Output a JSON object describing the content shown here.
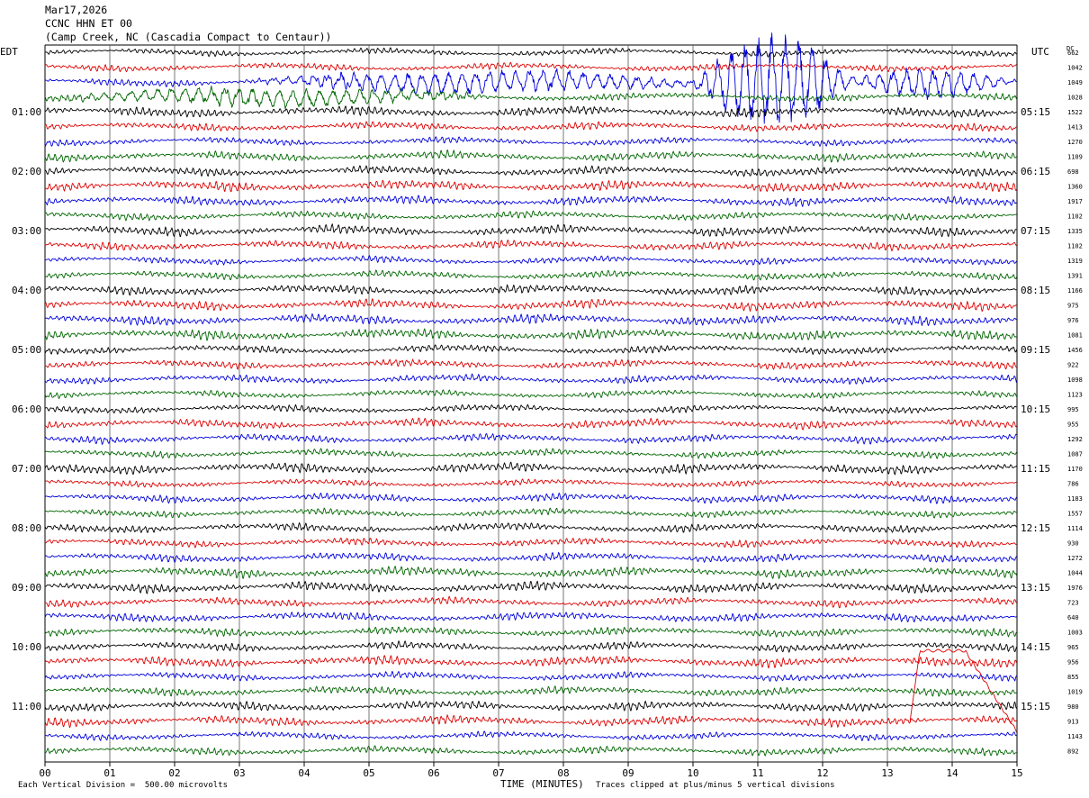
{
  "header": {
    "date": "Mar17,2026",
    "channel": "CCNC HHN ET 00",
    "location": "(Camp Creek, NC (Cascadia Compact to Centaur))"
  },
  "chart_data": {
    "type": "line",
    "title": "",
    "left_zone": "EDT",
    "right_zone": "UTC",
    "dc_label": "DC",
    "xlabel": "TIME (MINUTES)",
    "x_ticks": [
      "00",
      "01",
      "02",
      "03",
      "04",
      "05",
      "06",
      "07",
      "08",
      "09",
      "10",
      "11",
      "12",
      "13",
      "14",
      "15"
    ],
    "xlim": [
      0,
      15
    ],
    "grid_vertical": true,
    "trace_colors": [
      "#000000",
      "#dd0000",
      "#0000dd",
      "#006600"
    ],
    "left_hour_labels": [
      {
        "row": 4,
        "text": "01:00"
      },
      {
        "row": 8,
        "text": "02:00"
      },
      {
        "row": 12,
        "text": "03:00"
      },
      {
        "row": 16,
        "text": "04:00"
      },
      {
        "row": 20,
        "text": "05:00"
      },
      {
        "row": 24,
        "text": "06:00"
      },
      {
        "row": 28,
        "text": "07:00"
      },
      {
        "row": 32,
        "text": "08:00"
      },
      {
        "row": 36,
        "text": "09:00"
      },
      {
        "row": 40,
        "text": "10:00"
      },
      {
        "row": 44,
        "text": "11:00"
      }
    ],
    "right_hour_labels": [
      {
        "row": 4,
        "text": "05:15"
      },
      {
        "row": 8,
        "text": "06:15"
      },
      {
        "row": 12,
        "text": "07:15"
      },
      {
        "row": 16,
        "text": "08:15"
      },
      {
        "row": 20,
        "text": "09:15"
      },
      {
        "row": 24,
        "text": "10:15"
      },
      {
        "row": 28,
        "text": "11:15"
      },
      {
        "row": 32,
        "text": "12:15"
      },
      {
        "row": 36,
        "text": "13:15"
      },
      {
        "row": 40,
        "text": "14:15"
      },
      {
        "row": 44,
        "text": "15:15"
      }
    ],
    "dc_offsets": [
      "662",
      "1042",
      "1049",
      "1028",
      "1522",
      "1413",
      "1270",
      "1109",
      "698",
      "1360",
      "1917",
      "1102",
      "1335",
      "1102",
      "1319",
      "1391",
      "1166",
      "975",
      "976",
      "1081",
      "1456",
      "922",
      "1098",
      "1123",
      "995",
      "955",
      "1292",
      "1087",
      "1170",
      "786",
      "1183",
      "1557",
      "1114",
      "930",
      "1272",
      "1044",
      "1976",
      "723",
      "640",
      "1003",
      "965",
      "956",
      "855",
      "1019",
      "980",
      "913",
      "1143",
      "892"
    ],
    "events": [
      {
        "rows": [
          2
        ],
        "start_min": 3.0,
        "end_min": 10.5,
        "peak": 1.6
      },
      {
        "rows": [
          2
        ],
        "start_min": 10.0,
        "end_min": 12.5,
        "peak": 7.0
      },
      {
        "rows": [
          2
        ],
        "start_min": 12.3,
        "end_min": 15.0,
        "peak": 2.2
      },
      {
        "rows": [
          3
        ],
        "start_min": 0.0,
        "end_min": 7.0,
        "peak": 1.3
      }
    ],
    "drift": {
      "row": 45,
      "start_min": 13.35,
      "peak_min": 14.2,
      "end_min": 15.0
    },
    "footer_scale": "Each Vertical Division =  500.00 microvolts",
    "footer_clip": "Traces clipped at plus/minus 5 vertical divisions"
  }
}
